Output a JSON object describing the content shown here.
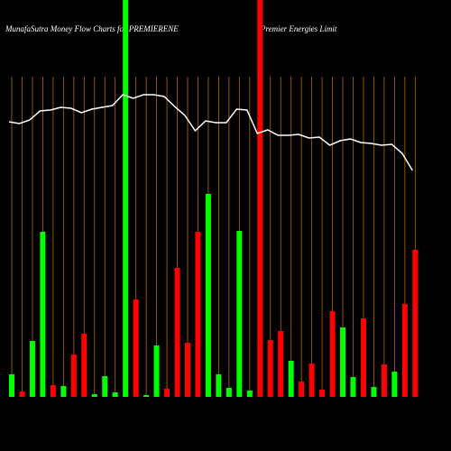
{
  "chart_data": {
    "type": "bar",
    "title": "MunafaSutra  Money Flow  Charts for PREMIERENE",
    "subtitle": "Premier Energies Limit",
    "categories": [
      null,
      null,
      null,
      null,
      null,
      null,
      null,
      null,
      null,
      null,
      null,
      null,
      null,
      null,
      null,
      null,
      null,
      null,
      null,
      null,
      null,
      null,
      null,
      null,
      null,
      null,
      null,
      null,
      null,
      null,
      null,
      null,
      null,
      null,
      null,
      null,
      null,
      null,
      null,
      null
    ],
    "values": [
      25,
      6,
      62,
      183,
      13,
      12,
      47,
      70,
      3,
      23,
      5,
      440,
      108,
      2,
      57,
      9,
      143,
      60,
      183,
      225,
      25,
      10,
      184,
      7,
      440,
      63,
      73,
      40,
      17,
      37,
      8,
      95,
      77,
      22,
      87,
      11,
      36,
      28,
      103,
      163
    ],
    "colors": [
      "#00ff00",
      "#ff0000",
      "#00ff00",
      "#00ff00",
      "#ff0000",
      "#00ff00",
      "#ff0000",
      "#ff0000",
      "#00ff00",
      "#00ff00",
      "#00ff00",
      "#00ff00",
      "#ff0000",
      "#00ff00",
      "#00ff00",
      "#ff0000",
      "#ff0000",
      "#ff0000",
      "#ff0000",
      "#00ff00",
      "#00ff00",
      "#00ff00",
      "#00ff00",
      "#00ff00",
      "#ff0000",
      "#ff0000",
      "#ff0000",
      "#00ff00",
      "#ff0000",
      "#ff0000",
      "#ff0000",
      "#ff0000",
      "#00ff00",
      "#00ff00",
      "#ff0000",
      "#00ff00",
      "#ff0000",
      "#00ff00",
      "#ff0000",
      "#ff0000"
    ],
    "line": {
      "color": "#ffffff",
      "values": [
        305,
        303,
        307,
        317,
        318,
        321,
        320,
        315,
        319,
        321,
        323,
        335,
        331,
        335,
        335,
        333,
        322,
        312,
        295,
        306,
        304,
        304,
        319,
        318,
        292,
        296,
        290,
        290,
        291,
        287,
        288,
        279,
        284,
        286,
        282,
        281,
        279,
        280,
        270,
        251
      ]
    },
    "ylim": [
      0,
      440
    ],
    "grid_color": "#b8650a"
  }
}
